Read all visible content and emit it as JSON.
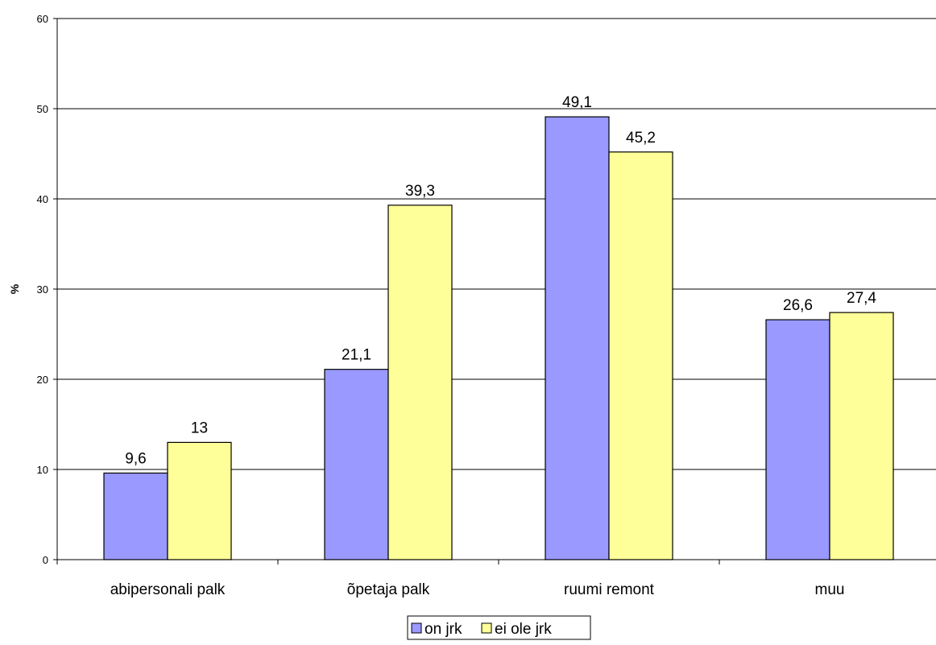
{
  "chart_data": {
    "type": "bar",
    "title": "",
    "xlabel": "",
    "ylabel": "%",
    "ylim": [
      0,
      60
    ],
    "yticks": [
      0,
      10,
      20,
      30,
      40,
      50,
      60
    ],
    "grid": true,
    "legend_position": "bottom-center",
    "categories": [
      "abipersonali palk",
      "õpetaja palk",
      "ruumi remont",
      "muu"
    ],
    "series": [
      {
        "name": "on jrk",
        "color": "#9999ff",
        "values": [
          9.6,
          21.1,
          49.1,
          26.6
        ],
        "labels": [
          "9,6",
          "21,1",
          "49,1",
          "26,6"
        ]
      },
      {
        "name": "ei ole jrk",
        "color": "#ffff99",
        "values": [
          13,
          39.3,
          45.2,
          27.4
        ],
        "labels": [
          "13",
          "39,3",
          "45,2",
          "27,4"
        ]
      }
    ]
  }
}
